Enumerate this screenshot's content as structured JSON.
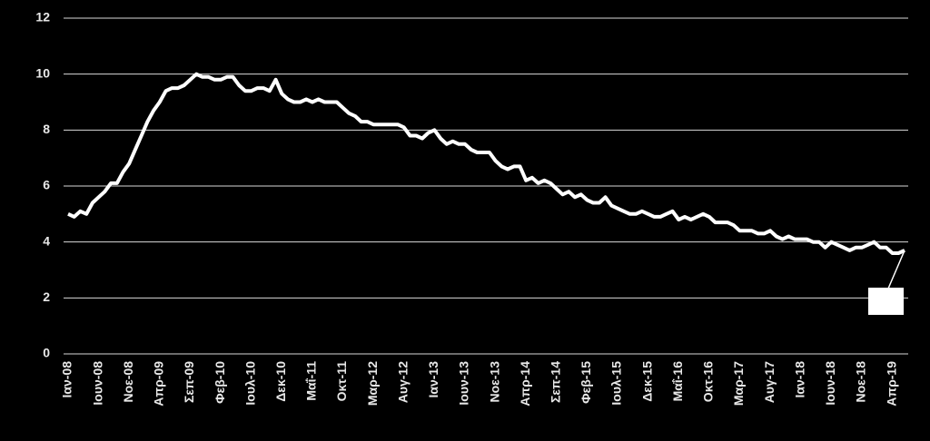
{
  "chart_data": {
    "type": "line",
    "categories": [
      "Ιαν-08",
      null,
      null,
      null,
      null,
      "Ιουν-08",
      null,
      null,
      null,
      null,
      "Νοε-08",
      null,
      null,
      null,
      null,
      "Απρ-09",
      null,
      null,
      null,
      null,
      "Σεπ-09",
      null,
      null,
      null,
      null,
      "Φεβ-10",
      null,
      null,
      null,
      null,
      "Ιουλ-10",
      null,
      null,
      null,
      null,
      "Δεκ-10",
      null,
      null,
      null,
      null,
      "Μαΐ-11",
      null,
      null,
      null,
      null,
      "Οκτ-11",
      null,
      null,
      null,
      null,
      "Μαρ-12",
      null,
      null,
      null,
      null,
      "Αυγ-12",
      null,
      null,
      null,
      null,
      "Ιαν-13",
      null,
      null,
      null,
      null,
      "Ιουν-13",
      null,
      null,
      null,
      null,
      "Νοε-13",
      null,
      null,
      null,
      null,
      "Απρ-14",
      null,
      null,
      null,
      null,
      "Σεπ-14",
      null,
      null,
      null,
      null,
      "Φεβ-15",
      null,
      null,
      null,
      null,
      "Ιουλ-15",
      null,
      null,
      null,
      null,
      "Δεκ-15",
      null,
      null,
      null,
      null,
      "Μαΐ-16",
      null,
      null,
      null,
      null,
      "Οκτ-16",
      null,
      null,
      null,
      null,
      "Μαρ-17",
      null,
      null,
      null,
      null,
      "Αυγ-17",
      null,
      null,
      null,
      null,
      "Ιαν-18",
      null,
      null,
      null,
      null,
      "Ιουν-18",
      null,
      null,
      null,
      null,
      "Νοε-18",
      null,
      null,
      null,
      null,
      "Απρ-19",
      null,
      null
    ],
    "values": [
      5.0,
      4.9,
      5.1,
      5.0,
      5.4,
      5.6,
      5.8,
      6.1,
      6.1,
      6.5,
      6.8,
      7.3,
      7.8,
      8.3,
      8.7,
      9.0,
      9.4,
      9.5,
      9.5,
      9.6,
      9.8,
      10.0,
      9.9,
      9.9,
      9.8,
      9.8,
      9.9,
      9.9,
      9.6,
      9.4,
      9.4,
      9.5,
      9.5,
      9.4,
      9.8,
      9.3,
      9.1,
      9.0,
      9.0,
      9.1,
      9.0,
      9.1,
      9.0,
      9.0,
      9.0,
      8.8,
      8.6,
      8.5,
      8.3,
      8.3,
      8.2,
      8.2,
      8.2,
      8.2,
      8.2,
      8.1,
      7.8,
      7.8,
      7.7,
      7.9,
      8.0,
      7.7,
      7.5,
      7.6,
      7.5,
      7.5,
      7.3,
      7.2,
      7.2,
      7.2,
      6.9,
      6.7,
      6.6,
      6.7,
      6.7,
      6.2,
      6.3,
      6.1,
      6.2,
      6.1,
      5.9,
      5.7,
      5.8,
      5.6,
      5.7,
      5.5,
      5.4,
      5.4,
      5.6,
      5.3,
      5.2,
      5.1,
      5.0,
      5.0,
      5.1,
      5.0,
      4.9,
      4.9,
      5.0,
      5.1,
      4.8,
      4.9,
      4.8,
      4.9,
      5.0,
      4.9,
      4.7,
      4.7,
      4.7,
      4.6,
      4.4,
      4.4,
      4.4,
      4.3,
      4.3,
      4.4,
      4.2,
      4.1,
      4.2,
      4.1,
      4.1,
      4.1,
      4.0,
      4.0,
      3.8,
      4.0,
      3.9,
      3.8,
      3.7,
      3.8,
      3.8,
      3.9,
      4.0,
      3.8,
      3.8,
      3.6,
      3.6,
      3.7
    ],
    "color": "#ffffff",
    "ylim": [
      0,
      12
    ],
    "yticks": [
      0,
      2,
      4,
      6,
      8,
      10,
      12
    ],
    "grid": true
  }
}
